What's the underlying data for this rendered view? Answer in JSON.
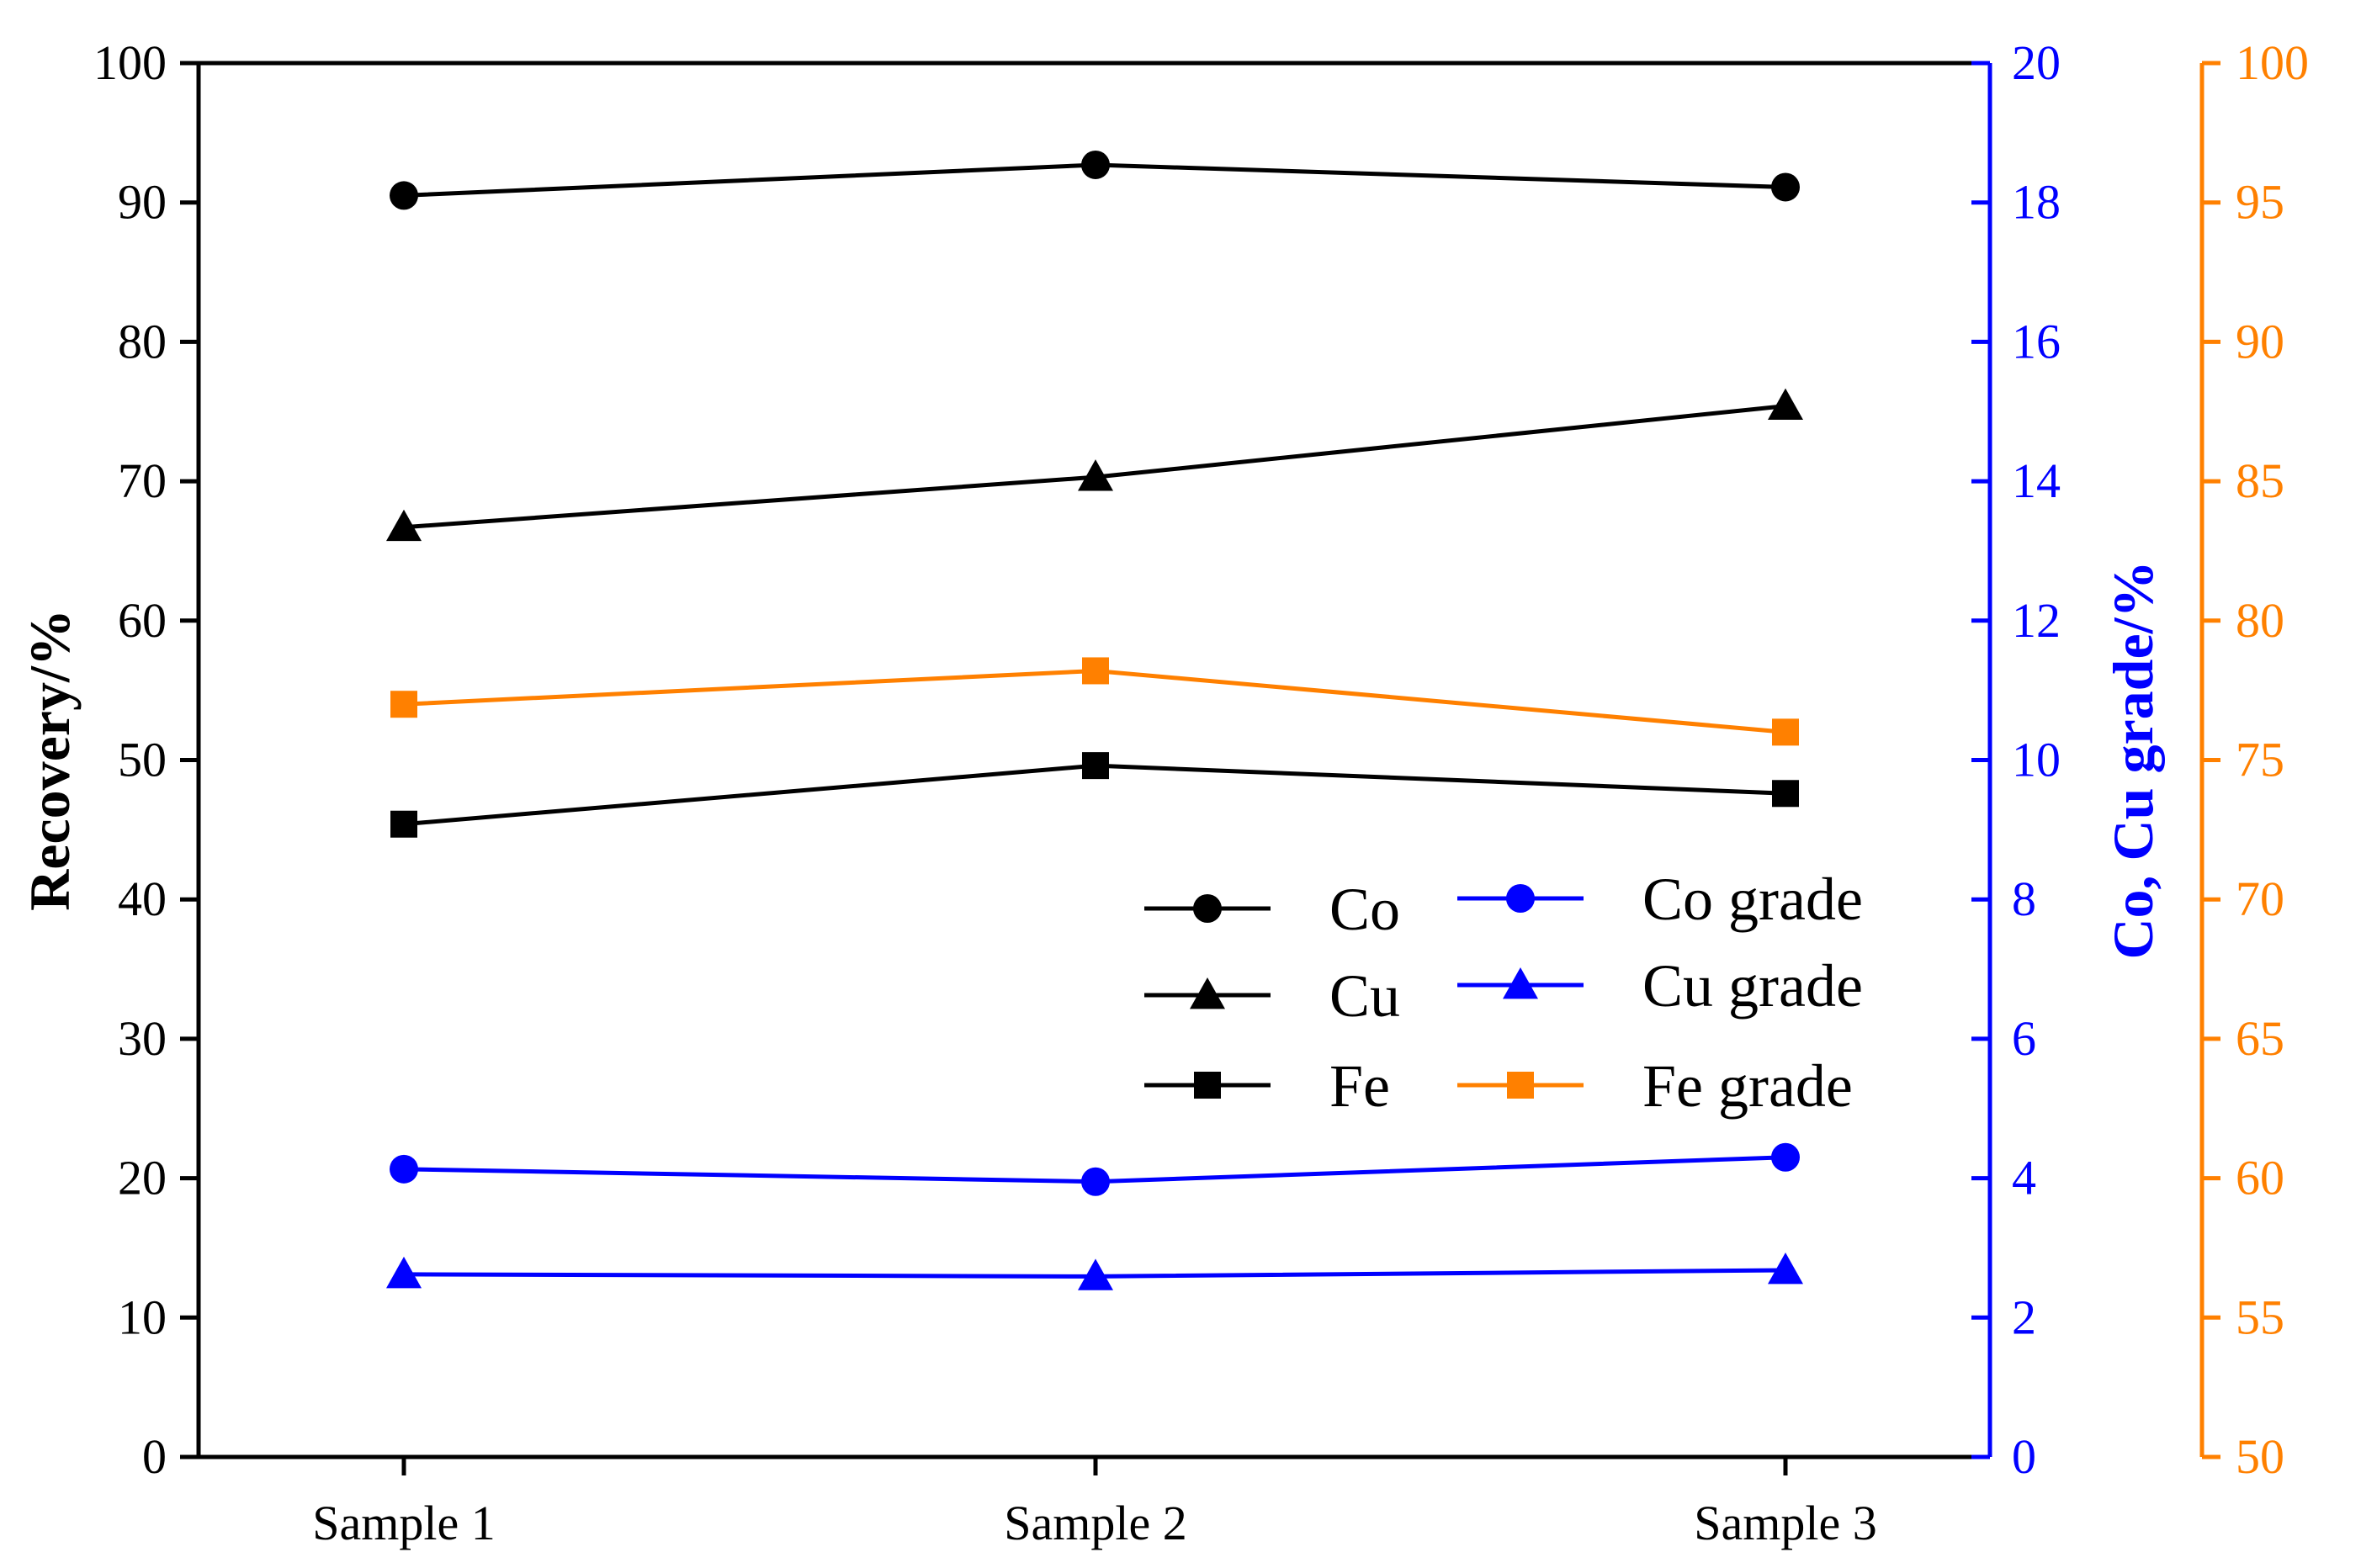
{
  "chart_data": {
    "type": "line",
    "categories": [
      "Sample 1",
      "Sample 2",
      "Sample 3"
    ],
    "y_left": {
      "label": "Recovery/%",
      "range": [
        0,
        100
      ],
      "ticks": [
        "0",
        "10",
        "20",
        "30",
        "40",
        "50",
        "60",
        "70",
        "80",
        "90",
        "100"
      ],
      "color": "#000000"
    },
    "y_right_1": {
      "label": "Co, Cu grade/%",
      "range": [
        0,
        20
      ],
      "ticks": [
        "0",
        "2",
        "4",
        "6",
        "8",
        "10",
        "12",
        "14",
        "16",
        "18",
        "20"
      ],
      "color": "#0000ff"
    },
    "y_right_2": {
      "label": "",
      "range": [
        50,
        100
      ],
      "ticks": [
        "50",
        "55",
        "60",
        "65",
        "70",
        "75",
        "80",
        "85",
        "90",
        "95",
        "100"
      ],
      "color": "#ff8000"
    },
    "series": [
      {
        "name": "Co",
        "axis": "left",
        "marker": "circle",
        "color": "#000000",
        "values": [
          90.5,
          92.7,
          91.1
        ]
      },
      {
        "name": "Cu",
        "axis": "left",
        "marker": "triangle",
        "color": "#000000",
        "values": [
          66.7,
          70.3,
          75.4
        ]
      },
      {
        "name": "Fe",
        "axis": "left",
        "marker": "square",
        "color": "#000000",
        "values": [
          45.4,
          49.6,
          47.6
        ]
      },
      {
        "name": "Co grade",
        "axis": "right1",
        "marker": "circle",
        "color": "#0000ff",
        "values": [
          4.13,
          3.95,
          4.3
        ]
      },
      {
        "name": "Cu grade",
        "axis": "right1",
        "marker": "triangle",
        "color": "#0000ff",
        "values": [
          2.62,
          2.59,
          2.68
        ]
      },
      {
        "name": "Fe grade",
        "axis": "right2",
        "marker": "square",
        "color": "#ff8000",
        "values": [
          77.0,
          78.2,
          76.0
        ]
      }
    ],
    "legend_placement": "lower-right (inside plot)"
  }
}
